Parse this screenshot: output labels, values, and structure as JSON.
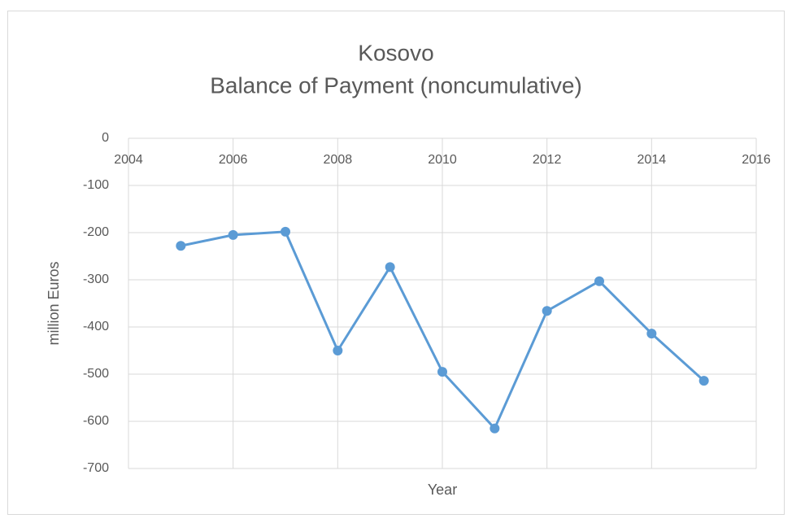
{
  "chart_data": {
    "type": "line",
    "title": "Kosovo",
    "subtitle": "Balance of Payment (noncumulative)",
    "x_label": "Year",
    "y_label": "million Euros",
    "x": [
      2005,
      2006,
      2007,
      2008,
      2009,
      2010,
      2011,
      2012,
      2013,
      2014,
      2015
    ],
    "values": [
      -228,
      -205,
      -198,
      -450,
      -273,
      -495,
      -615,
      -366,
      -303,
      -414,
      -514
    ],
    "color": "#5b9bd5",
    "xlim": [
      2004,
      2016
    ],
    "xticks": [
      2004,
      2006,
      2008,
      2010,
      2012,
      2014,
      2016
    ],
    "ylim": [
      -700,
      0
    ],
    "yticks": [
      0,
      -100,
      -200,
      -300,
      -400,
      -500,
      -600,
      -700
    ],
    "grid": true
  }
}
